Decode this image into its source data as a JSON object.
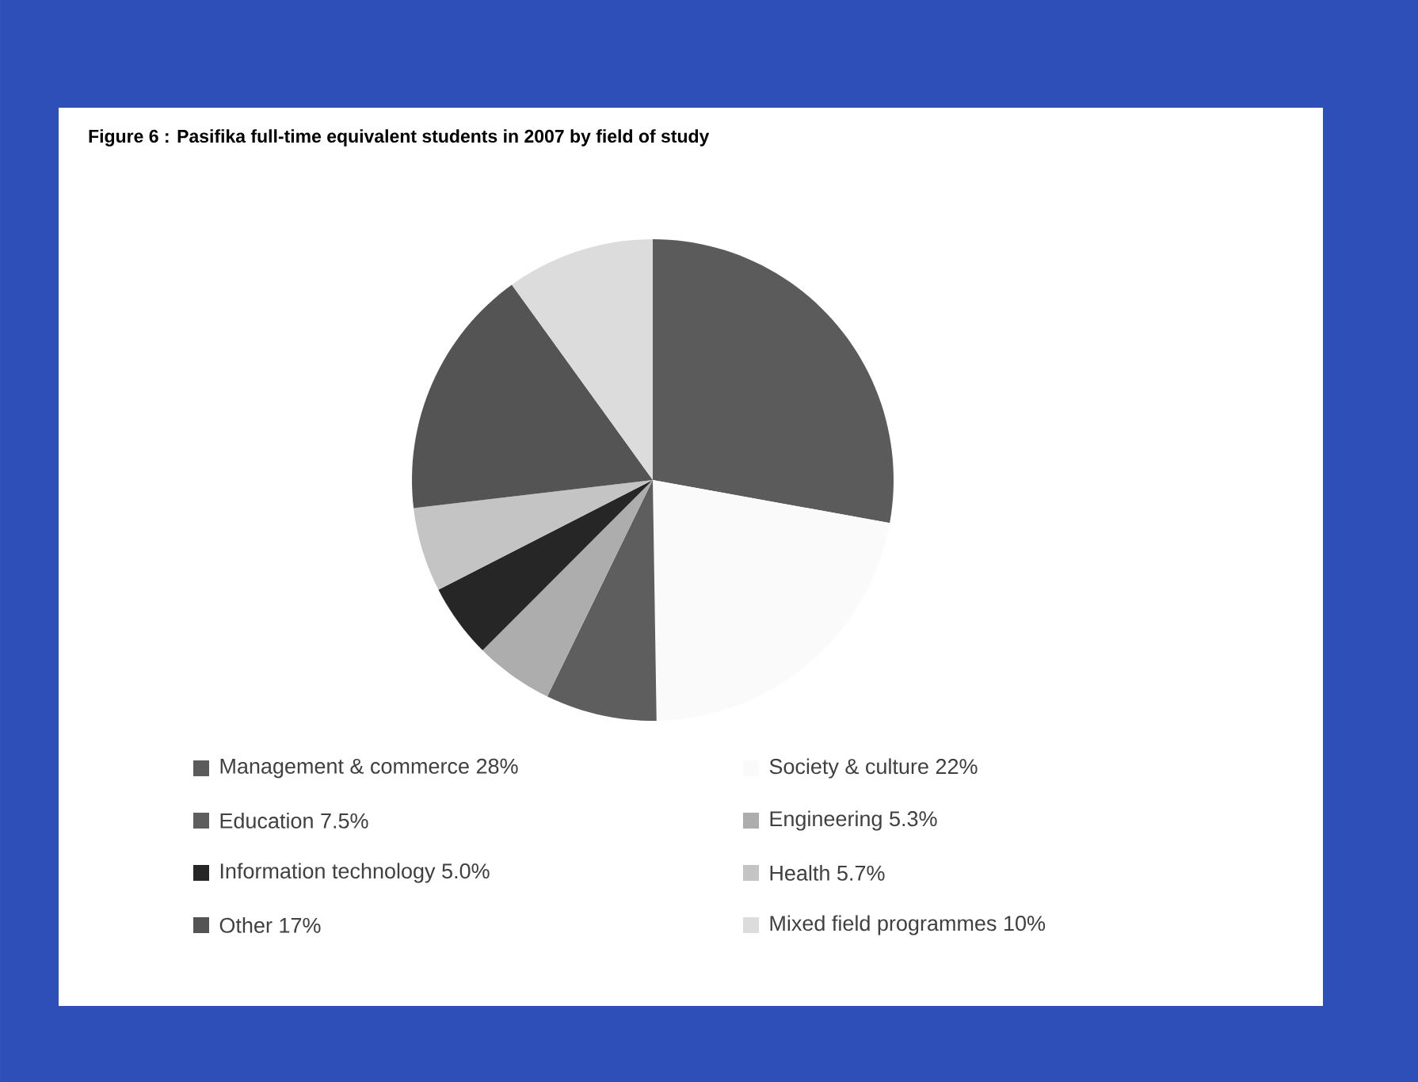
{
  "chart_data": {
    "type": "pie",
    "title": "Figure 6 : Pasifika full-time equivalent students in 2007 by field of study",
    "categories": [
      "Management & commerce",
      "Society & culture",
      "Education",
      "Engineering",
      "Information technology",
      "Health",
      "Other",
      "Mixed field programmes"
    ],
    "values": [
      28,
      22,
      7.5,
      5.3,
      5.0,
      5.7,
      17,
      10
    ],
    "value_labels": [
      "28%",
      "22%",
      "7.5%",
      "5.3%",
      "5.0%",
      "5.7%",
      "17%",
      "10%"
    ],
    "colors": [
      "#5b5b5b",
      "#fafafa",
      "#5e5e5e",
      "#adadad",
      "#262626",
      "#c4c4c4",
      "#545454",
      "#dcdcdc"
    ],
    "legend": "bottom"
  }
}
